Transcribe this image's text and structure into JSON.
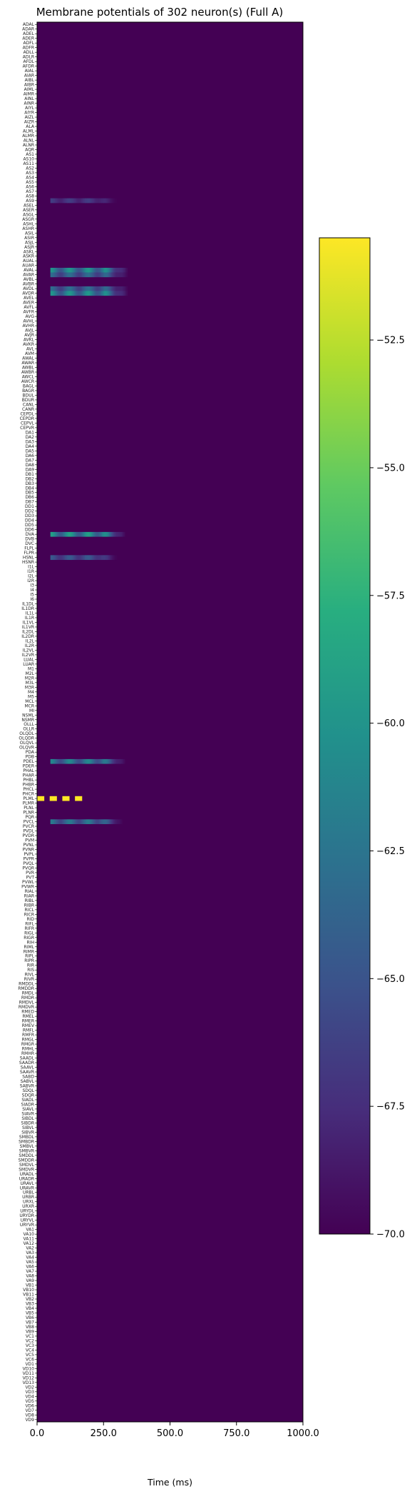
{
  "chart_data": {
    "type": "heatmap",
    "title": "Membrane potentials of 302 neuron(s) (Full A)",
    "xlabel": "Time (ms)",
    "ylabel": "",
    "xlim": [
      0,
      1000
    ],
    "x_ticks": [
      "0.0",
      "250.0",
      "500.0",
      "750.0",
      "1000.0"
    ],
    "x_tick_values": [
      0,
      250,
      500,
      750,
      1000
    ],
    "n_neurons": 302,
    "neuron_labels": [
      "ADAL",
      "ADAR",
      "ADEL",
      "ADER",
      "ADFL",
      "ADFR",
      "ADLL",
      "ADLR",
      "AFDL",
      "AFDR",
      "AIAL",
      "AIAR",
      "AIBL",
      "AIBR",
      "AIML",
      "AIMR",
      "AINL",
      "AINR",
      "AIYL",
      "AIYR",
      "AIZL",
      "AIZR",
      "ALA",
      "ALML",
      "ALMR",
      "ALNL",
      "ALNR",
      "AQR",
      "AS1",
      "AS10",
      "AS11",
      "AS2",
      "AS3",
      "AS4",
      "AS5",
      "AS6",
      "AS7",
      "AS8",
      "AS9",
      "ASEL",
      "ASER",
      "ASGL",
      "ASGR",
      "ASHL",
      "ASHR",
      "ASIL",
      "ASIR",
      "ASJL",
      "ASJR",
      "ASKL",
      "ASKR",
      "AUAL",
      "AUAR",
      "AVAL",
      "AVAR",
      "AVBL",
      "AVBR",
      "AVDL",
      "AVDR",
      "AVEL",
      "AVER",
      "AVFL",
      "AVFR",
      "AVG",
      "AVHL",
      "AVHR",
      "AVJL",
      "AVJR",
      "AVKL",
      "AVKR",
      "AVL",
      "AVM",
      "AWAL",
      "AWAR",
      "AWBL",
      "AWBR",
      "AWCL",
      "AWCR",
      "BAGL",
      "BAGR",
      "BDUL",
      "BDUR",
      "CANL",
      "CANR",
      "CEPDL",
      "CEPDR",
      "CEPVL",
      "CEPVR",
      "DA1",
      "DA2",
      "DA3",
      "DA4",
      "DA5",
      "DA6",
      "DA7",
      "DA8",
      "DA9",
      "DB1",
      "DB2",
      "DB3",
      "DB4",
      "DB5",
      "DB6",
      "DB7",
      "DD1",
      "DD2",
      "DD3",
      "DD4",
      "DD5",
      "DD6",
      "DVA",
      "DVB",
      "DVC",
      "FLPL",
      "FLPR",
      "HSNL",
      "HSNR",
      "I1L",
      "I1R",
      "I2L",
      "I2R",
      "I3",
      "I4",
      "I5",
      "I6",
      "IL1DL",
      "IL1DR",
      "IL1L",
      "IL1R",
      "IL1VL",
      "IL1VR",
      "IL2DL",
      "IL2DR",
      "IL2L",
      "IL2R",
      "IL2VL",
      "IL2VR",
      "LUAL",
      "LUAR",
      "M1",
      "M2L",
      "M2R",
      "M3L",
      "M3R",
      "M4",
      "M5",
      "MCL",
      "MCR",
      "MI",
      "NSML",
      "NSMR",
      "OLLL",
      "OLLR",
      "OLQDL",
      "OLQDR",
      "OLQVL",
      "OLQVR",
      "PDA",
      "PDB",
      "PDEL",
      "PDER",
      "PHAL",
      "PHAR",
      "PHBL",
      "PHBR",
      "PHCL",
      "PHCR",
      "PLML",
      "PLMR",
      "PLNL",
      "PLNR",
      "PQR",
      "PVCL",
      "PVCR",
      "PVDL",
      "PVDR",
      "PVM",
      "PVNL",
      "PVNR",
      "PVPL",
      "PVPR",
      "PVQL",
      "PVQR",
      "PVR",
      "PVT",
      "PVWL",
      "PVWR",
      "RIAL",
      "RIAR",
      "RIBL",
      "RIBR",
      "RICL",
      "RICR",
      "RID",
      "RIFL",
      "RIFR",
      "RIGL",
      "RIGR",
      "RIH",
      "RIML",
      "RIMR",
      "RIPL",
      "RIPR",
      "RIR",
      "RIS",
      "RIVL",
      "RIVR",
      "RMDDL",
      "RMDDR",
      "RMDL",
      "RMDR",
      "RMDVL",
      "RMDVR",
      "RMED",
      "RMEL",
      "RMER",
      "RMEV",
      "RMFL",
      "RMFR",
      "RMGL",
      "RMGR",
      "RMHL",
      "RMHR",
      "SAADL",
      "SAADR",
      "SAAVL",
      "SAAVR",
      "SABD",
      "SABVL",
      "SABVR",
      "SDQL",
      "SDQR",
      "SIADL",
      "SIADR",
      "SIAVL",
      "SIAVR",
      "SIBDL",
      "SIBDR",
      "SIBVL",
      "SIBVR",
      "SMBDL",
      "SMBDR",
      "SMBVL",
      "SMBVR",
      "SMDDL",
      "SMDDR",
      "SMDVL",
      "SMDVR",
      "URADL",
      "URADR",
      "URAVL",
      "URAVR",
      "URBL",
      "URBR",
      "URXL",
      "URXR",
      "URYDL",
      "URYDR",
      "URYVL",
      "URYVR",
      "VA1",
      "VA10",
      "VA11",
      "VA12",
      "VA2",
      "VA3",
      "VA4",
      "VA5",
      "VA6",
      "VA7",
      "VA8",
      "VA9",
      "VB1",
      "VB10",
      "VB11",
      "VB2",
      "VB3",
      "VB4",
      "VB5",
      "VB6",
      "VB7",
      "VB8",
      "VB9",
      "VC1",
      "VC2",
      "VC3",
      "VC4",
      "VC5",
      "VC6",
      "VD1",
      "VD10",
      "VD11",
      "VD12",
      "VD13",
      "VD2",
      "VD3",
      "VD4",
      "VD5",
      "VD6",
      "VD7",
      "VD8",
      "VD9"
    ],
    "value_range": [
      -70.0,
      -50.5
    ],
    "baseline_value": -70.0,
    "active_rows": [
      {
        "neuron": "AS9",
        "time_ms": [
          50,
          300
        ],
        "peak_mV": -66.5,
        "pattern": "oscillating"
      },
      {
        "neuron": "AVAL",
        "time_ms": [
          50,
          340
        ],
        "peak_mV": -59.8,
        "pattern": "oscillating"
      },
      {
        "neuron": "AVAR",
        "time_ms": [
          50,
          340
        ],
        "peak_mV": -63.0,
        "pattern": "oscillating"
      },
      {
        "neuron": "AVDL",
        "time_ms": [
          50,
          340
        ],
        "peak_mV": -63.0,
        "pattern": "oscillating"
      },
      {
        "neuron": "AVDR",
        "time_ms": [
          50,
          340
        ],
        "peak_mV": -59.8,
        "pattern": "oscillating"
      },
      {
        "neuron": "DVA",
        "time_ms": [
          50,
          330
        ],
        "peak_mV": -59.0,
        "pattern": "oscillating"
      },
      {
        "neuron": "HSNL",
        "time_ms": [
          50,
          300
        ],
        "peak_mV": -64.5,
        "pattern": "oscillating"
      },
      {
        "neuron": "PDEL",
        "time_ms": [
          50,
          330
        ],
        "peak_mV": -61.0,
        "pattern": "oscillating"
      },
      {
        "neuron": "PLML",
        "time_ms": [
          0,
          190
        ],
        "peak_mV": -50.5,
        "pattern": "pulses"
      },
      {
        "neuron": "PVCL",
        "time_ms": [
          50,
          320
        ],
        "peak_mV": -62.0,
        "pattern": "oscillating"
      }
    ],
    "colorbar": {
      "colormap": "viridis",
      "min": -70.0,
      "max": -50.5,
      "ticks": [
        -52.5,
        -55.0,
        -57.5,
        -60.0,
        -62.5,
        -65.0,
        -67.5,
        -70.0
      ],
      "tick_labels": [
        "−52.5",
        "−55.0",
        "−57.5",
        "−60.0",
        "−62.5",
        "−65.0",
        "−67.5",
        "−70.0"
      ]
    }
  }
}
